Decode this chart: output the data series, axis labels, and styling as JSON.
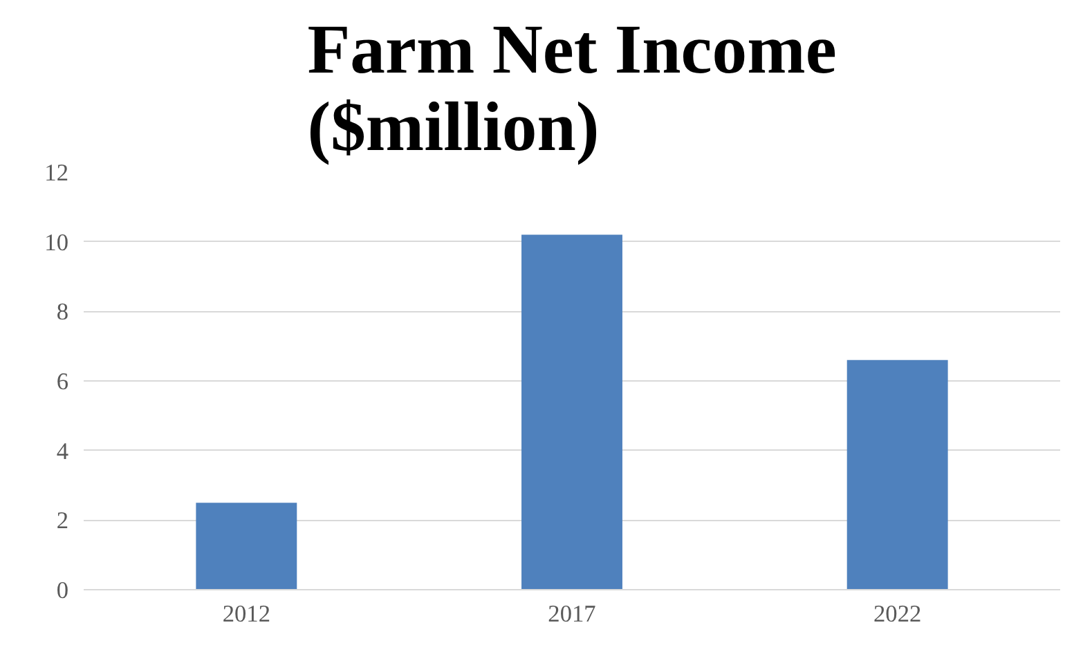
{
  "chart_data": {
    "type": "bar",
    "title": "Farm Net Income ($million)",
    "categories": [
      "2012",
      "2017",
      "2022"
    ],
    "values": [
      2.5,
      10.2,
      6.6
    ],
    "color": "#4f81bd",
    "ylim": [
      0,
      12
    ],
    "yticks": [
      0,
      2,
      4,
      6,
      8,
      10,
      12
    ],
    "grid": "y"
  }
}
